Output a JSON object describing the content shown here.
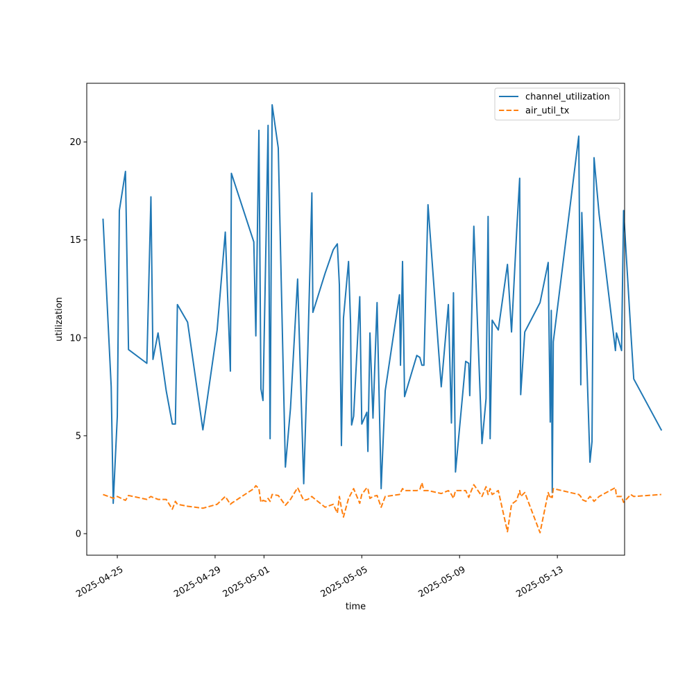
{
  "chart_data": {
    "type": "line",
    "title": "",
    "xlabel": "time",
    "ylabel": "utilization",
    "ylim": [
      -1.1,
      23.0
    ],
    "xlim": [
      "2025-04-23T18:00",
      "2025-05-15T18:00"
    ],
    "x_ticks": [
      "2025-04-25",
      "2025-04-29",
      "2025-05-01",
      "2025-05-05",
      "2025-05-09",
      "2025-05-13"
    ],
    "y_ticks": [
      0,
      5,
      10,
      15,
      20
    ],
    "grid": false,
    "legend_position": "top-right",
    "series": [
      {
        "name": "channel_utilization",
        "color": "#1f77b4",
        "style": "solid",
        "points": [
          [
            "2025-04-24T10:00",
            16.05
          ],
          [
            "2025-04-24T18:00",
            7.5
          ],
          [
            "2025-04-24T20:00",
            1.55
          ],
          [
            "2025-04-25T00:00",
            6.0
          ],
          [
            "2025-04-25T02:00",
            16.5
          ],
          [
            "2025-04-25T08:00",
            18.5
          ],
          [
            "2025-04-25T11:00",
            9.4
          ],
          [
            "2025-04-26T05:00",
            8.7
          ],
          [
            "2025-04-26T09:00",
            17.2
          ],
          [
            "2025-04-26T11:00",
            8.9
          ],
          [
            "2025-04-26T16:00",
            10.25
          ],
          [
            "2025-04-27T00:00",
            7.3
          ],
          [
            "2025-04-27T06:00",
            5.6
          ],
          [
            "2025-04-27T09:00",
            5.6
          ],
          [
            "2025-04-27T11:00",
            11.7
          ],
          [
            "2025-04-27T21:00",
            10.8
          ],
          [
            "2025-04-28T12:00",
            5.3
          ],
          [
            "2025-04-29T02:00",
            10.4
          ],
          [
            "2025-04-29T10:00",
            15.4
          ],
          [
            "2025-04-29T15:00",
            8.3
          ],
          [
            "2025-04-29T16:00",
            18.4
          ],
          [
            "2025-04-30T14:00",
            14.9
          ],
          [
            "2025-04-30T16:00",
            10.1
          ],
          [
            "2025-04-30T19:00",
            20.6
          ],
          [
            "2025-04-30T21:00",
            7.4
          ],
          [
            "2025-04-30T23:00",
            6.8
          ],
          [
            "2025-05-01T02:00",
            15.0
          ],
          [
            "2025-05-01T04:00",
            20.85
          ],
          [
            "2025-05-01T06:00",
            4.85
          ],
          [
            "2025-05-01T08:00",
            21.9
          ],
          [
            "2025-05-01T14:00",
            19.7
          ],
          [
            "2025-05-01T21:00",
            3.4
          ],
          [
            "2025-05-02T02:00",
            6.4
          ],
          [
            "2025-05-02T09:00",
            13.0
          ],
          [
            "2025-05-02T15:00",
            2.55
          ],
          [
            "2025-05-02T19:00",
            9.3
          ],
          [
            "2025-05-02T23:00",
            17.4
          ],
          [
            "2025-05-03T00:00",
            11.3
          ],
          [
            "2025-05-03T12:00",
            13.3
          ],
          [
            "2025-05-03T20:00",
            14.5
          ],
          [
            "2025-05-04T00:00",
            14.8
          ],
          [
            "2025-05-04T02:00",
            12.7
          ],
          [
            "2025-05-04T04:00",
            4.5
          ],
          [
            "2025-05-04T06:00",
            11.0
          ],
          [
            "2025-05-04T11:00",
            13.9
          ],
          [
            "2025-05-04T13:00",
            10.7
          ],
          [
            "2025-05-04T14:00",
            5.55
          ],
          [
            "2025-05-04T16:00",
            6.0
          ],
          [
            "2025-05-04T22:00",
            12.1
          ],
          [
            "2025-05-05T00:00",
            5.6
          ],
          [
            "2025-05-05T05:00",
            6.2
          ],
          [
            "2025-05-05T06:00",
            4.2
          ],
          [
            "2025-05-05T08:00",
            10.25
          ],
          [
            "2025-05-05T11:00",
            5.9
          ],
          [
            "2025-05-05T15:00",
            11.8
          ],
          [
            "2025-05-05T19:00",
            2.3
          ],
          [
            "2025-05-05T23:00",
            7.3
          ],
          [
            "2025-05-06T13:00",
            12.2
          ],
          [
            "2025-05-06T14:00",
            8.6
          ],
          [
            "2025-05-06T16:00",
            13.9
          ],
          [
            "2025-05-06T18:00",
            7.0
          ],
          [
            "2025-05-07T06:00",
            9.1
          ],
          [
            "2025-05-07T09:00",
            9.0
          ],
          [
            "2025-05-07T11:00",
            8.6
          ],
          [
            "2025-05-07T13:00",
            8.6
          ],
          [
            "2025-05-07T17:00",
            16.8
          ],
          [
            "2025-05-08T06:00",
            7.5
          ],
          [
            "2025-05-08T13:00",
            11.7
          ],
          [
            "2025-05-08T16:00",
            5.65
          ],
          [
            "2025-05-08T18:00",
            12.3
          ],
          [
            "2025-05-08T20:00",
            3.15
          ],
          [
            "2025-05-09T06:00",
            8.8
          ],
          [
            "2025-05-09T09:00",
            8.7
          ],
          [
            "2025-05-09T10:00",
            7.05
          ],
          [
            "2025-05-09T14:00",
            15.7
          ],
          [
            "2025-05-09T22:00",
            4.6
          ],
          [
            "2025-05-10T02:00",
            6.9
          ],
          [
            "2025-05-10T04:00",
            16.2
          ],
          [
            "2025-05-10T06:00",
            4.85
          ],
          [
            "2025-05-10T08:00",
            10.9
          ],
          [
            "2025-05-10T14:00",
            10.4
          ],
          [
            "2025-05-10T23:00",
            13.75
          ],
          [
            "2025-05-11T03:00",
            10.3
          ],
          [
            "2025-05-11T08:00",
            15.4
          ],
          [
            "2025-05-11T11:00",
            18.15
          ],
          [
            "2025-05-11T12:00",
            7.1
          ],
          [
            "2025-05-11T16:00",
            10.3
          ],
          [
            "2025-05-12T07:00",
            11.8
          ],
          [
            "2025-05-12T15:00",
            13.85
          ],
          [
            "2025-05-12T17:00",
            5.7
          ],
          [
            "2025-05-12T18:00",
            11.4
          ],
          [
            "2025-05-12T19:00",
            2.1
          ],
          [
            "2025-05-12T20:00",
            9.8
          ],
          [
            "2025-05-13T21:00",
            20.3
          ],
          [
            "2025-05-13T23:00",
            7.6
          ],
          [
            "2025-05-14T00:00",
            16.4
          ],
          [
            "2025-05-14T04:00",
            10.2
          ],
          [
            "2025-05-14T08:00",
            3.65
          ],
          [
            "2025-05-14T10:00",
            4.7
          ],
          [
            "2025-05-14T12:00",
            19.2
          ],
          [
            "2025-05-14T17:00",
            16.3
          ],
          [
            "2025-05-15T09:00",
            9.35
          ],
          [
            "2025-05-15T10:00",
            10.25
          ],
          [
            "2025-05-15T15:00",
            9.35
          ],
          [
            "2025-05-15T17:00",
            16.5
          ],
          [
            "2025-05-16T00:00",
            10.4
          ],
          [
            "2025-05-16T03:00",
            7.9
          ],
          [
            "2025-05-17T06:00",
            5.3
          ]
        ]
      },
      {
        "name": "air_util_tx",
        "color": "#ff7f0e",
        "style": "dashed",
        "points": [
          [
            "2025-04-24T10:00",
            2.0
          ],
          [
            "2025-04-24T18:00",
            1.85
          ],
          [
            "2025-04-24T20:00",
            1.8
          ],
          [
            "2025-04-25T00:00",
            1.9
          ],
          [
            "2025-04-25T02:00",
            1.85
          ],
          [
            "2025-04-25T08:00",
            1.7
          ],
          [
            "2025-04-25T11:00",
            1.95
          ],
          [
            "2025-04-26T05:00",
            1.75
          ],
          [
            "2025-04-26T09:00",
            1.9
          ],
          [
            "2025-04-26T11:00",
            1.85
          ],
          [
            "2025-04-26T16:00",
            1.75
          ],
          [
            "2025-04-27T00:00",
            1.75
          ],
          [
            "2025-04-27T06:00",
            1.25
          ],
          [
            "2025-04-27T09:00",
            1.65
          ],
          [
            "2025-04-27T11:00",
            1.5
          ],
          [
            "2025-04-27T21:00",
            1.4
          ],
          [
            "2025-04-28T12:00",
            1.3
          ],
          [
            "2025-04-29T02:00",
            1.5
          ],
          [
            "2025-04-29T10:00",
            1.9
          ],
          [
            "2025-04-29T15:00",
            1.5
          ],
          [
            "2025-04-29T16:00",
            1.55
          ],
          [
            "2025-04-30T14:00",
            2.3
          ],
          [
            "2025-04-30T16:00",
            2.45
          ],
          [
            "2025-04-30T19:00",
            2.3
          ],
          [
            "2025-04-30T21:00",
            1.6
          ],
          [
            "2025-04-30T23:00",
            1.7
          ],
          [
            "2025-05-01T02:00",
            1.65
          ],
          [
            "2025-05-01T04:00",
            1.8
          ],
          [
            "2025-05-01T06:00",
            1.65
          ],
          [
            "2025-05-01T08:00",
            2.0
          ],
          [
            "2025-05-01T14:00",
            1.95
          ],
          [
            "2025-05-01T21:00",
            1.45
          ],
          [
            "2025-05-02T02:00",
            1.75
          ],
          [
            "2025-05-02T09:00",
            2.35
          ],
          [
            "2025-05-02T15:00",
            1.7
          ],
          [
            "2025-05-02T19:00",
            1.75
          ],
          [
            "2025-05-02T23:00",
            1.9
          ],
          [
            "2025-05-03T00:00",
            1.85
          ],
          [
            "2025-05-03T12:00",
            1.35
          ],
          [
            "2025-05-03T20:00",
            1.5
          ],
          [
            "2025-05-04T00:00",
            1.05
          ],
          [
            "2025-05-04T02:00",
            1.9
          ],
          [
            "2025-05-04T04:00",
            1.3
          ],
          [
            "2025-05-04T06:00",
            0.85
          ],
          [
            "2025-05-04T11:00",
            1.8
          ],
          [
            "2025-05-04T13:00",
            2.0
          ],
          [
            "2025-05-04T14:00",
            2.1
          ],
          [
            "2025-05-04T16:00",
            2.3
          ],
          [
            "2025-05-04T22:00",
            1.55
          ],
          [
            "2025-05-05T00:00",
            2.0
          ],
          [
            "2025-05-05T05:00",
            2.35
          ],
          [
            "2025-05-05T06:00",
            2.3
          ],
          [
            "2025-05-05T08:00",
            1.8
          ],
          [
            "2025-05-05T11:00",
            1.9
          ],
          [
            "2025-05-05T15:00",
            1.95
          ],
          [
            "2025-05-05T19:00",
            1.35
          ],
          [
            "2025-05-05T23:00",
            1.9
          ],
          [
            "2025-05-06T13:00",
            2.0
          ],
          [
            "2025-05-06T14:00",
            2.1
          ],
          [
            "2025-05-06T16:00",
            2.3
          ],
          [
            "2025-05-06T18:00",
            2.2
          ],
          [
            "2025-05-07T06:00",
            2.2
          ],
          [
            "2025-05-07T09:00",
            2.25
          ],
          [
            "2025-05-07T11:00",
            2.6
          ],
          [
            "2025-05-07T13:00",
            2.2
          ],
          [
            "2025-05-07T17:00",
            2.2
          ],
          [
            "2025-05-08T06:00",
            2.05
          ],
          [
            "2025-05-08T13:00",
            2.2
          ],
          [
            "2025-05-08T16:00",
            2.0
          ],
          [
            "2025-05-08T18:00",
            1.8
          ],
          [
            "2025-05-08T20:00",
            2.2
          ],
          [
            "2025-05-09T06:00",
            2.2
          ],
          [
            "2025-05-09T09:00",
            1.85
          ],
          [
            "2025-05-09T10:00",
            2.0
          ],
          [
            "2025-05-09T14:00",
            2.5
          ],
          [
            "2025-05-09T22:00",
            1.9
          ],
          [
            "2025-05-10T02:00",
            2.4
          ],
          [
            "2025-05-10T04:00",
            2.0
          ],
          [
            "2025-05-10T06:00",
            2.3
          ],
          [
            "2025-05-10T08:00",
            2.0
          ],
          [
            "2025-05-10T14:00",
            2.2
          ],
          [
            "2025-05-10T23:00",
            0.1
          ],
          [
            "2025-05-11T03:00",
            1.5
          ],
          [
            "2025-05-11T08:00",
            1.7
          ],
          [
            "2025-05-11T11:00",
            2.2
          ],
          [
            "2025-05-11T12:00",
            1.9
          ],
          [
            "2025-05-11T16:00",
            2.1
          ],
          [
            "2025-05-12T07:00",
            0.05
          ],
          [
            "2025-05-12T15:00",
            2.1
          ],
          [
            "2025-05-12T17:00",
            1.8
          ],
          [
            "2025-05-12T18:00",
            1.9
          ],
          [
            "2025-05-12T19:00",
            1.85
          ],
          [
            "2025-05-12T20:00",
            2.3
          ],
          [
            "2025-05-13T21:00",
            2.0
          ],
          [
            "2025-05-13T23:00",
            1.9
          ],
          [
            "2025-05-14T00:00",
            1.75
          ],
          [
            "2025-05-14T04:00",
            1.65
          ],
          [
            "2025-05-14T08:00",
            1.9
          ],
          [
            "2025-05-14T10:00",
            1.8
          ],
          [
            "2025-05-14T12:00",
            1.65
          ],
          [
            "2025-05-14T17:00",
            1.9
          ],
          [
            "2025-05-15T09:00",
            2.35
          ],
          [
            "2025-05-15T10:00",
            1.9
          ],
          [
            "2025-05-15T15:00",
            1.9
          ],
          [
            "2025-05-15T17:00",
            1.6
          ],
          [
            "2025-05-16T00:00",
            2.0
          ],
          [
            "2025-05-16T03:00",
            1.9
          ],
          [
            "2025-05-17T06:00",
            2.0
          ]
        ]
      }
    ]
  }
}
